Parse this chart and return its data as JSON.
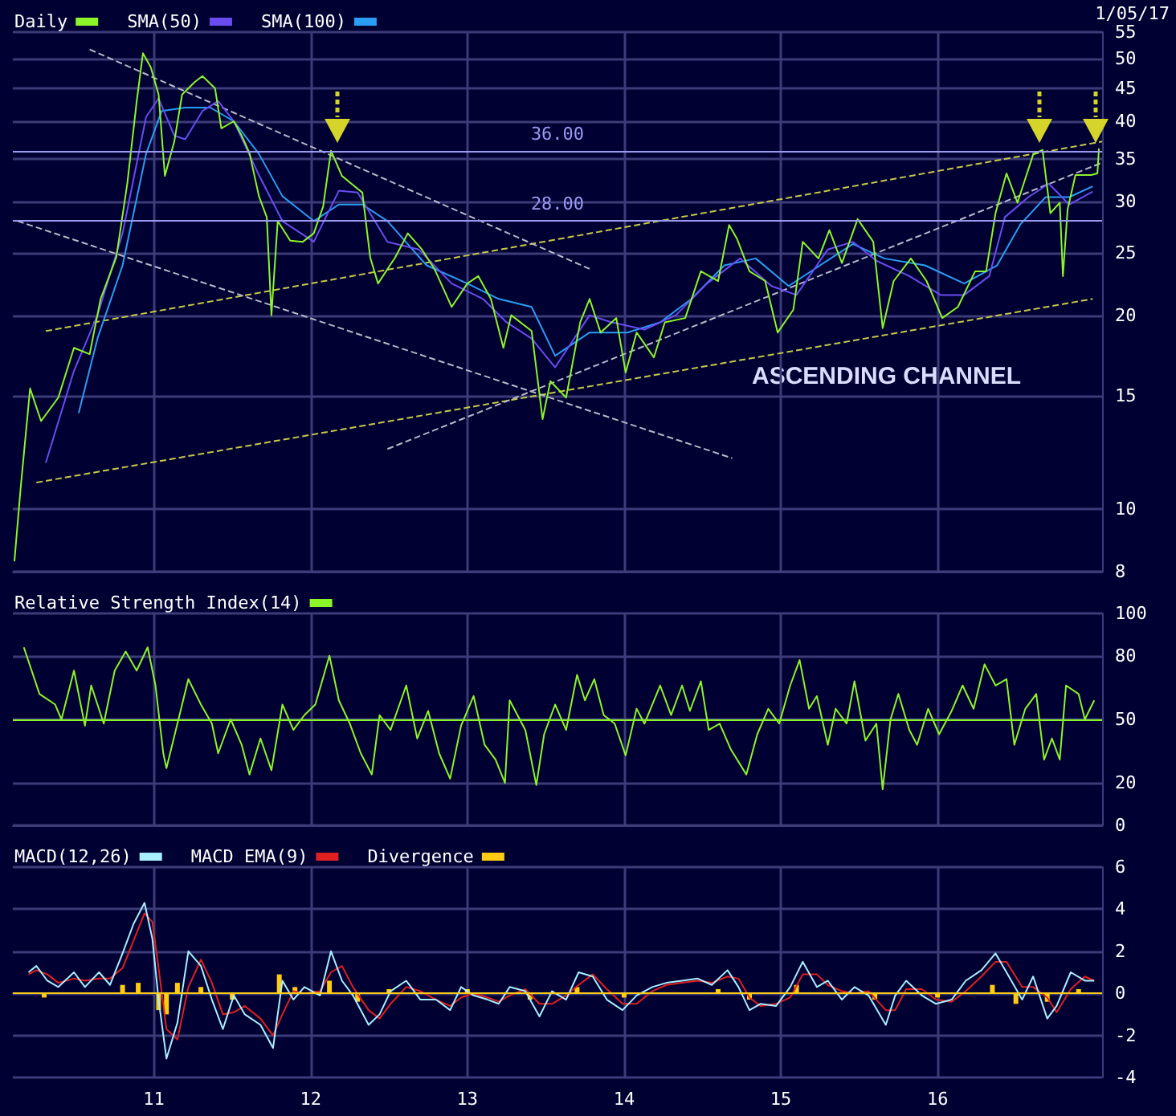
{
  "chart_data": [
    {
      "type": "line",
      "log": "y",
      "grid": true,
      "legend": "top left",
      "marker": "none",
      "tick_labels": "y",
      "xlim": [
        2010.1,
        2017.05
      ],
      "xticks": [
        {
          "value": 2011,
          "label": null
        },
        {
          "value": 2012,
          "label": null
        },
        {
          "value": 2013,
          "label": null
        },
        {
          "value": 2014,
          "label": null
        },
        {
          "value": 2015,
          "label": null
        },
        {
          "value": 2016,
          "label": null
        }
      ],
      "ylim": [
        8,
        55
      ],
      "yticks": [
        8,
        10,
        15,
        20,
        25,
        30,
        35,
        40,
        45,
        50,
        55
      ],
      "annotations": [
        "1/05/17",
        "ASCENDING CHANNEL"
      ],
      "ref_lines": [
        {
          "axis": "y",
          "value": 36,
          "label": "36.00",
          "color": "#9a9af0"
        },
        {
          "axis": "y",
          "value": 28,
          "label": "28.00",
          "color": "#9a9af0"
        }
      ],
      "series": [
        {
          "type": "line",
          "color": "#c8c84a",
          "line_style": "dashed",
          "x": [
            2010.25,
            2016.99
          ],
          "values": [
            11,
            21.2
          ]
        },
        {
          "type": "line",
          "color": "#c8c84a",
          "line_style": "dashed",
          "x": [
            2010.31,
            2017.05
          ],
          "values": [
            18.9,
            37.2
          ]
        },
        {
          "type": "line",
          "color": "#b8b8c8",
          "line_style": "dashed",
          "x": [
            2010.59,
            2013.78
          ],
          "values": [
            51.7,
            23.6
          ]
        },
        {
          "type": "line",
          "color": "#b8b8c8",
          "line_style": "dashed",
          "x": [
            2010.13,
            2014.69
          ],
          "values": [
            28,
            12
          ]
        },
        {
          "type": "line",
          "color": "#b8b8c8",
          "line_style": "dashed",
          "x": [
            2012.49,
            2017.05
          ],
          "values": [
            12.4,
            34.5
          ]
        },
        {
          "name": "SMA(100)",
          "color": "#2a9df4",
          "x": [
            2010.52,
            2010.64,
            2010.8,
            2010.95,
            2011.05,
            2011.2,
            2011.36,
            2011.51,
            2011.67,
            2011.82,
            2012.02,
            2012.18,
            2012.33,
            2012.49,
            2012.74,
            2013.0,
            2013.2,
            2013.41,
            2013.56,
            2013.78,
            2014.02,
            2014.23,
            2014.43,
            2014.64,
            2014.84,
            2015.05,
            2015.25,
            2015.46,
            2015.66,
            2015.92,
            2016.17,
            2016.38,
            2016.53,
            2016.69,
            2016.84,
            2016.99
          ],
          "values": [
            14.1,
            18.4,
            23.9,
            35.6,
            41.5,
            42,
            42,
            40,
            35.6,
            30.6,
            28,
            29.7,
            29.7,
            28,
            23.9,
            22.4,
            21.2,
            20.6,
            17.3,
            18.8,
            18.8,
            19.5,
            21.2,
            23.9,
            24.5,
            22.2,
            23.9,
            25.8,
            24.5,
            23.9,
            22.4,
            23.9,
            27.7,
            30.5,
            30.5,
            31.7
          ]
        },
        {
          "name": "SMA(50)",
          "color": "#6a4cf0",
          "x": [
            2010.31,
            2010.49,
            2010.64,
            2010.8,
            2010.95,
            2011.03,
            2011.13,
            2011.2,
            2011.31,
            2011.41,
            2011.51,
            2011.67,
            2011.82,
            2012.02,
            2012.18,
            2012.3,
            2012.49,
            2012.69,
            2012.9,
            2013.1,
            2013.25,
            2013.41,
            2013.56,
            2013.78,
            2013.92,
            2014.13,
            2014.33,
            2014.53,
            2014.74,
            2014.94,
            2015.1,
            2015.3,
            2015.46,
            2015.61,
            2015.82,
            2016.02,
            2016.17,
            2016.33,
            2016.43,
            2016.58,
            2016.71,
            2016.84,
            2016.99
          ],
          "values": [
            11.8,
            16.4,
            20,
            26.8,
            40.6,
            43.4,
            38,
            37.5,
            41.5,
            43,
            40,
            33,
            28,
            26,
            31.2,
            31,
            26,
            25.3,
            22.4,
            21.2,
            19.5,
            18.4,
            16.6,
            20,
            19.5,
            19,
            20,
            22.4,
            24.5,
            22.2,
            21.5,
            25.3,
            26,
            24.3,
            23,
            21.5,
            21.5,
            23,
            28.4,
            30.5,
            32,
            29.7,
            31.1
          ]
        },
        {
          "name": "Daily",
          "color": "#8cf529",
          "x": [
            2010.11,
            2010.15,
            2010.21,
            2010.28,
            2010.39,
            2010.49,
            2010.59,
            2010.66,
            2010.76,
            2010.83,
            2010.89,
            2010.93,
            2010.98,
            2011.03,
            2011.07,
            2011.13,
            2011.18,
            2011.26,
            2011.31,
            2011.39,
            2011.43,
            2011.51,
            2011.56,
            2011.61,
            2011.67,
            2011.72,
            2011.75,
            2011.79,
            2011.87,
            2011.95,
            2012.02,
            2012.08,
            2012.13,
            2012.2,
            2012.26,
            2012.33,
            2012.38,
            2012.43,
            2012.54,
            2012.62,
            2012.71,
            2012.79,
            2012.9,
            2013.0,
            2013.07,
            2013.15,
            2013.23,
            2013.28,
            2013.41,
            2013.48,
            2013.53,
            2013.63,
            2013.72,
            2013.78,
            2013.85,
            2013.95,
            2014.01,
            2014.08,
            2014.19,
            2014.26,
            2014.39,
            2014.49,
            2014.6,
            2014.67,
            2014.72,
            2014.8,
            2014.9,
            2014.98,
            2015.08,
            2015.14,
            2015.24,
            2015.31,
            2015.39,
            2015.49,
            2015.59,
            2015.65,
            2015.72,
            2015.83,
            2015.93,
            2016.03,
            2016.13,
            2016.24,
            2016.31,
            2016.37,
            2016.44,
            2016.51,
            2016.61,
            2016.67,
            2016.72,
            2016.78,
            2016.8,
            2016.83,
            2016.88,
            2016.98,
            2017.02,
            2017.03
          ],
          "values": [
            8.3,
            10.8,
            15.4,
            13.7,
            14.9,
            17.8,
            17.4,
            21.2,
            24.6,
            32,
            42.9,
            51,
            48.5,
            44,
            32.9,
            37.2,
            44,
            46,
            47,
            45,
            39,
            40,
            38,
            35.7,
            30.6,
            28.4,
            20,
            28,
            26.1,
            26,
            26.8,
            29.5,
            36,
            32.9,
            32,
            31,
            24.6,
            22.4,
            24.6,
            26.8,
            25.3,
            23.6,
            20.6,
            22.4,
            23,
            21.2,
            17.8,
            20,
            18.9,
            13.8,
            15.8,
            14.9,
            19.5,
            21.2,
            18.8,
            19.8,
            16.3,
            18.8,
            17.2,
            19.5,
            19.8,
            23.4,
            22.6,
            27.6,
            26.3,
            23.4,
            22.6,
            18.8,
            20.4,
            26,
            24.5,
            27.1,
            24.1,
            28.2,
            26,
            19.1,
            22.6,
            24.5,
            22.6,
            19.8,
            20.6,
            23.4,
            23.4,
            28.8,
            33.2,
            29.9,
            35.5,
            36.1,
            28.8,
            29.9,
            23,
            29.2,
            33,
            33,
            33.2,
            36.3
          ]
        }
      ]
    },
    {
      "type": "line",
      "grid": true,
      "legend": "top left",
      "marker": "none",
      "tick_labels": "y",
      "xlim": [
        2010.1,
        2017.05
      ],
      "xticks": [
        {
          "value": 2011,
          "label": null
        },
        {
          "value": 2012,
          "label": null
        },
        {
          "value": 2013,
          "label": null
        },
        {
          "value": 2014,
          "label": null
        },
        {
          "value": 2015,
          "label": null
        },
        {
          "value": 2016,
          "label": null
        }
      ],
      "ylim": [
        0,
        100
      ],
      "yticks": [
        0,
        20,
        50,
        80,
        100
      ],
      "ref_lines": [
        {
          "axis": "y",
          "value": 50,
          "color": "#8cf529"
        }
      ],
      "x": [
        2010.17,
        2010.22,
        2010.27,
        2010.37,
        2010.41,
        2010.49,
        2010.56,
        2010.6,
        2010.68,
        2010.75,
        2010.82,
        2010.89,
        2010.96,
        2011.01,
        2011.06,
        2011.08,
        2011.15,
        2011.22,
        2011.3,
        2011.37,
        2011.41,
        2011.49,
        2011.56,
        2011.61,
        2011.68,
        2011.75,
        2011.82,
        2011.89,
        2011.96,
        2012.03,
        2012.12,
        2012.18,
        2012.25,
        2012.32,
        2012.39,
        2012.44,
        2012.51,
        2012.61,
        2012.68,
        2012.75,
        2012.82,
        2012.89,
        2012.96,
        2013.04,
        2013.11,
        2013.18,
        2013.24,
        2013.27,
        2013.37,
        2013.44,
        2013.49,
        2013.56,
        2013.63,
        2013.7,
        2013.75,
        2013.81,
        2013.87,
        2013.94,
        2014.01,
        2014.08,
        2014.13,
        2014.23,
        2014.3,
        2014.37,
        2014.42,
        2014.49,
        2014.54,
        2014.61,
        2014.68,
        2014.78,
        2014.85,
        2014.92,
        2014.99,
        2015.06,
        2015.12,
        2015.18,
        2015.23,
        2015.3,
        2015.35,
        2015.42,
        2015.47,
        2015.54,
        2015.61,
        2015.65,
        2015.7,
        2015.75,
        2015.82,
        2015.87,
        2015.94,
        2016.01,
        2016.09,
        2016.16,
        2016.23,
        2016.3,
        2016.37,
        2016.44,
        2016.49,
        2016.56,
        2016.63,
        2016.68,
        2016.73,
        2016.78,
        2016.82,
        2016.9,
        2016.94,
        2017.0
      ],
      "series": [
        {
          "name": "Relative Strength Index(14)",
          "color": "#8cf529",
          "values": [
            84,
            73,
            62,
            57,
            50,
            73,
            47,
            66,
            48,
            73,
            82,
            73,
            84,
            66,
            34,
            27,
            48,
            69,
            57,
            48,
            34,
            50,
            38,
            24,
            41,
            26,
            57,
            45,
            52,
            57,
            80,
            59,
            48,
            34,
            24,
            52,
            45,
            66,
            41,
            54,
            34,
            22,
            47,
            61,
            38,
            31,
            20,
            59,
            45,
            19,
            43,
            57,
            45,
            71,
            59,
            69,
            52,
            48,
            33,
            55,
            48,
            66,
            52,
            66,
            54,
            68,
            45,
            48,
            36,
            24,
            43,
            55,
            48,
            66,
            78,
            55,
            61,
            38,
            55,
            48,
            68,
            40,
            48,
            17,
            50,
            62,
            45,
            38,
            55,
            43,
            54,
            66,
            55,
            76,
            66,
            69,
            38,
            55,
            62,
            31,
            41,
            31,
            66,
            62,
            50,
            59
          ]
        }
      ]
    },
    {
      "type": "line",
      "grid": true,
      "legend": "top left",
      "marker": "none",
      "xlim": [
        2010.1,
        2017.05
      ],
      "xticks": [
        {
          "value": 2011,
          "label": "11"
        },
        {
          "value": 2012,
          "label": "12"
        },
        {
          "value": 2013,
          "label": "13"
        },
        {
          "value": 2014,
          "label": "14"
        },
        {
          "value": 2015,
          "label": "15"
        },
        {
          "value": 2016,
          "label": "16"
        }
      ],
      "ylim": [
        -4,
        6
      ],
      "yticks": [
        -4,
        -2,
        0,
        2,
        4,
        6
      ],
      "ref_lines": [
        {
          "axis": "y",
          "value": 0,
          "color": "#ffcc11"
        }
      ],
      "x": [
        2010.2,
        2010.25,
        2010.32,
        2010.39,
        2010.49,
        2010.56,
        2010.65,
        2010.72,
        2010.8,
        2010.87,
        2010.94,
        2010.99,
        2011.03,
        2011.08,
        2011.15,
        2011.22,
        2011.3,
        2011.37,
        2011.44,
        2011.51,
        2011.58,
        2011.68,
        2011.76,
        2011.82,
        2011.89,
        2011.96,
        2012.06,
        2012.13,
        2012.2,
        2012.27,
        2012.37,
        2012.44,
        2012.51,
        2012.61,
        2012.7,
        2012.8,
        2012.89,
        2012.96,
        2013.04,
        2013.13,
        2013.2,
        2013.27,
        2013.37,
        2013.46,
        2013.54,
        2013.63,
        2013.71,
        2013.8,
        2013.89,
        2013.99,
        2014.08,
        2014.18,
        2014.27,
        2014.37,
        2014.47,
        2014.56,
        2014.66,
        2014.73,
        2014.8,
        2014.87,
        2014.97,
        2015.06,
        2015.14,
        2015.23,
        2015.3,
        2015.39,
        2015.47,
        2015.56,
        2015.67,
        2015.73,
        2015.8,
        2015.9,
        2015.99,
        2016.09,
        2016.18,
        2016.28,
        2016.37,
        2016.44,
        2016.54,
        2016.61,
        2016.7,
        2016.76,
        2016.85,
        2016.94,
        2017.0
      ],
      "series": [
        {
          "name": "Divergence",
          "type": "bar",
          "color": "#ffcc11",
          "x": [
            2010.3,
            2010.8,
            2010.9,
            2011.03,
            2011.08,
            2011.15,
            2011.3,
            2011.5,
            2011.8,
            2011.9,
            2012.12,
            2012.3,
            2012.5,
            2013.0,
            2013.4,
            2013.7,
            2014.0,
            2014.6,
            2014.8,
            2015.1,
            2015.6,
            2016.0,
            2016.35,
            2016.5,
            2016.7,
            2016.9
          ],
          "values": [
            -0.2,
            0.4,
            0.5,
            -0.8,
            -1.0,
            0.5,
            0.3,
            -0.3,
            0.9,
            0.3,
            0.6,
            -0.4,
            0.2,
            0.2,
            -0.3,
            0.3,
            -0.2,
            0.2,
            -0.3,
            0.4,
            -0.3,
            -0.2,
            0.4,
            -0.5,
            -0.4,
            0.2
          ]
        },
        {
          "name": "MACD EMA(9)",
          "color": "#e02020",
          "values": [
            0.9,
            1.1,
            0.9,
            0.5,
            0.7,
            0.6,
            0.7,
            0.7,
            1.2,
            2.5,
            3.8,
            3.4,
            1.2,
            -1.7,
            -2.2,
            0.3,
            1.6,
            0.5,
            -1.0,
            -0.9,
            -0.6,
            -1.2,
            -2.0,
            -1.0,
            0.1,
            0.0,
            0.1,
            1.0,
            1.3,
            0.3,
            -0.8,
            -1.2,
            -0.5,
            0.3,
            0.1,
            -0.3,
            -0.6,
            -0.2,
            0.0,
            -0.2,
            -0.4,
            -0.1,
            0.2,
            -0.5,
            -0.5,
            -0.1,
            0.4,
            0.9,
            0.2,
            -0.5,
            -0.5,
            0.1,
            0.4,
            0.5,
            0.6,
            0.5,
            0.8,
            0.7,
            -0.2,
            -0.6,
            -0.5,
            -0.2,
            0.9,
            0.9,
            0.4,
            0.1,
            0.0,
            0.1,
            -0.8,
            -0.8,
            0.2,
            0.2,
            -0.3,
            -0.4,
            0.1,
            0.8,
            1.5,
            1.5,
            0.3,
            0.3,
            -0.2,
            -0.9,
            0.2,
            0.8,
            0.6
          ]
        },
        {
          "name": "MACD(12,26)",
          "color": "#a8f0ff",
          "values": [
            1.0,
            1.3,
            0.6,
            0.3,
            1.0,
            0.3,
            1.0,
            0.4,
            1.9,
            3.3,
            4.3,
            2.6,
            -0.3,
            -3.1,
            -1.4,
            2.0,
            1.3,
            -0.3,
            -1.7,
            -0.1,
            -1.0,
            -1.5,
            -2.6,
            0.6,
            -0.3,
            0.3,
            -0.1,
            2.0,
            0.6,
            -0.1,
            -1.5,
            -1.0,
            0.1,
            0.6,
            -0.3,
            -0.3,
            -0.8,
            0.3,
            -0.1,
            -0.3,
            -0.5,
            0.3,
            0.1,
            -1.1,
            0.1,
            -0.3,
            1.0,
            0.8,
            -0.3,
            -0.8,
            -0.1,
            0.3,
            0.5,
            0.6,
            0.7,
            0.4,
            1.1,
            0.3,
            -0.8,
            -0.5,
            -0.6,
            0.3,
            1.5,
            0.3,
            0.6,
            -0.3,
            0.3,
            -0.1,
            -1.5,
            -0.1,
            0.6,
            -0.1,
            -0.5,
            -0.3,
            0.6,
            1.1,
            1.9,
            1.0,
            -0.3,
            0.8,
            -1.2,
            -0.6,
            1.0,
            0.6,
            0.6
          ]
        }
      ]
    }
  ]
}
